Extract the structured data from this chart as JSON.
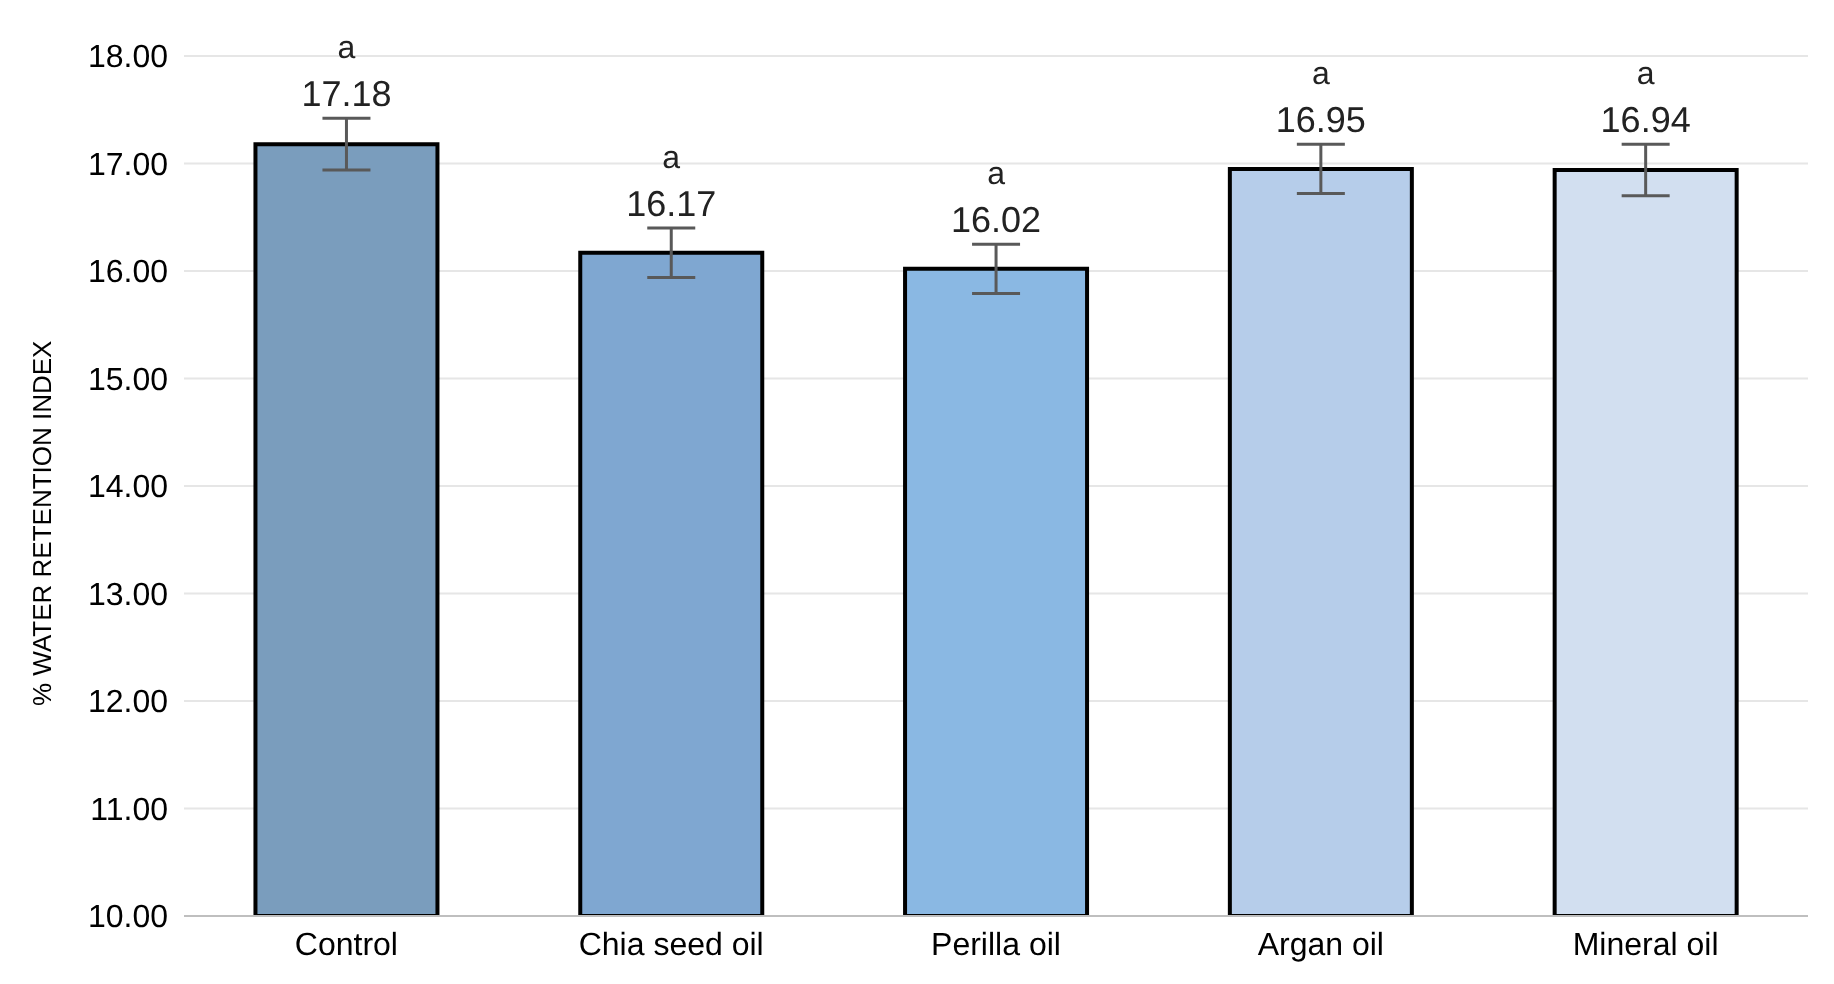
{
  "chart_data": {
    "type": "bar",
    "ylabel": "% WATER RETENTION INDEX",
    "categories": [
      "Control",
      "Chia seed oil",
      "Perilla oil",
      "Argan oil",
      "Mineral oil"
    ],
    "values": [
      17.18,
      16.17,
      16.02,
      16.95,
      16.94
    ],
    "colors": [
      "#7a9dbd",
      "#7fa7d1",
      "#8ab8e3",
      "#b6cdea",
      "#d2dff0"
    ],
    "errors": [
      0.24,
      0.23,
      0.23,
      0.23,
      0.24
    ],
    "data_labels": true,
    "annotations": [
      {
        "text": "a",
        "x": "Control",
        "y": 17.18
      },
      {
        "text": "a",
        "x": "Chia seed oil",
        "y": 16.17
      },
      {
        "text": "a",
        "x": "Perilla oil",
        "y": 16.02
      },
      {
        "text": "a",
        "x": "Argan oil",
        "y": 16.95
      },
      {
        "text": "a",
        "x": "Mineral oil",
        "y": 16.94
      }
    ],
    "ylim": [
      10,
      18
    ],
    "yticks": [
      {
        "value": 10,
        "label": "10.00"
      },
      {
        "value": 11,
        "label": "11.00"
      },
      {
        "value": 12,
        "label": "12.00"
      },
      {
        "value": 13,
        "label": "13.00"
      },
      {
        "value": 14,
        "label": "14.00"
      },
      {
        "value": 15,
        "label": "15.00"
      },
      {
        "value": 16,
        "label": "16.00"
      },
      {
        "value": 17,
        "label": "17.00"
      },
      {
        "value": 18,
        "label": "18.00"
      }
    ],
    "grid": "y"
  }
}
